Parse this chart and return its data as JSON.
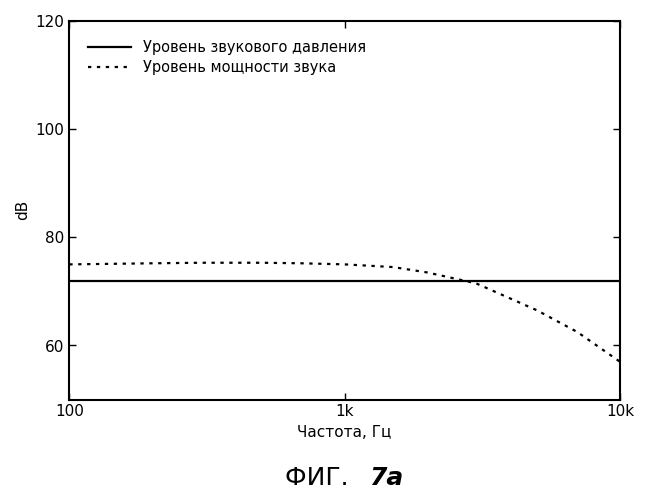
{
  "title_normal": "ФИГ.  ",
  "title_bold": "7а",
  "xlabel": "Частота, Гц",
  "ylabel": "dB",
  "xlim": [
    100,
    10000
  ],
  "ylim": [
    50,
    120
  ],
  "yticks": [
    60,
    80,
    100,
    120
  ],
  "xtick_labels": [
    "100",
    "1k",
    "10k"
  ],
  "xtick_positions": [
    100,
    1000,
    10000
  ],
  "solid_line": {
    "x": [
      100,
      10000
    ],
    "y": [
      72,
      72
    ],
    "color": "#000000",
    "linewidth": 1.6,
    "label": "Уровень звукового давления"
  },
  "dashed_line": {
    "x_points": [
      100,
      200,
      300,
      500,
      700,
      1000,
      1500,
      2000,
      3000,
      5000,
      7000,
      10000
    ],
    "y_points": [
      75.0,
      75.2,
      75.3,
      75.3,
      75.2,
      75.0,
      74.5,
      73.5,
      71.5,
      66.5,
      62.5,
      57.0
    ],
    "color": "#000000",
    "linewidth": 1.6,
    "label": "Уровень мощности звука"
  },
  "legend_fontsize": 10.5,
  "axis_label_fontsize": 11,
  "title_fontsize": 18,
  "tick_fontsize": 11,
  "background_color": "#ffffff",
  "spine_linewidth": 1.5
}
